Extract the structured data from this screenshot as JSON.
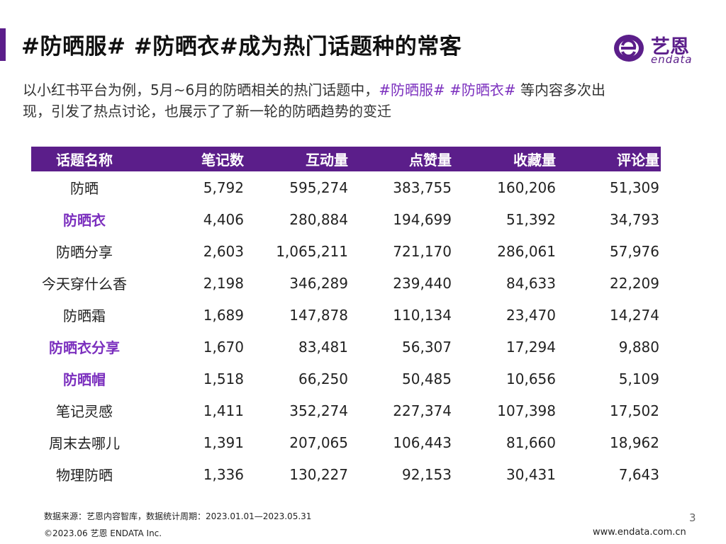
{
  "slide": {
    "title": "#防晒服# #防晒衣#成为热门话题种的常客",
    "intro_part1": "以小红书平台为例，5月~6月的防晒相关的热门话题中，",
    "intro_highlight": "#防晒服# #防晒衣#",
    "intro_part2": " 等内容多次出现，引发了热点讨论，也展示了了新一轮的防晒趋势的变迁",
    "page_number": "3"
  },
  "logo": {
    "cn_text": "艺恩",
    "en_text": "endata",
    "icon": "endata-logo-icon",
    "color": "#5b1e8a"
  },
  "table": {
    "headers": [
      "话题名称",
      "笔记数",
      "互动量",
      "点赞量",
      "收藏量",
      "评论量"
    ],
    "rows": [
      {
        "name": "防晒",
        "notes": "5,792",
        "interactions": "595,274",
        "likes": "383,755",
        "collects": "160,206",
        "comments": "51,309",
        "highlight": false
      },
      {
        "name": "防晒衣",
        "notes": "4,406",
        "interactions": "280,884",
        "likes": "194,699",
        "collects": "51,392",
        "comments": "34,793",
        "highlight": true
      },
      {
        "name": "防晒分享",
        "notes": "2,603",
        "interactions": "1,065,211",
        "likes": "721,170",
        "collects": "286,061",
        "comments": "57,976",
        "highlight": false
      },
      {
        "name": "今天穿什么香",
        "notes": "2,198",
        "interactions": "346,289",
        "likes": "239,440",
        "collects": "84,633",
        "comments": "22,209",
        "highlight": false
      },
      {
        "name": "防晒霜",
        "notes": "1,689",
        "interactions": "147,878",
        "likes": "110,134",
        "collects": "23,470",
        "comments": "14,274",
        "highlight": false
      },
      {
        "name": "防晒衣分享",
        "notes": "1,670",
        "interactions": "83,481",
        "likes": "56,307",
        "collects": "17,294",
        "comments": "9,880",
        "highlight": true
      },
      {
        "name": "防晒帽",
        "notes": "1,518",
        "interactions": "66,250",
        "likes": "50,485",
        "collects": "10,656",
        "comments": "5,109",
        "highlight": true
      },
      {
        "name": "笔记灵感",
        "notes": "1,411",
        "interactions": "352,274",
        "likes": "227,374",
        "collects": "107,398",
        "comments": "17,502",
        "highlight": false
      },
      {
        "name": "周末去哪儿",
        "notes": "1,391",
        "interactions": "207,065",
        "likes": "106,443",
        "collects": "81,660",
        "comments": "18,962",
        "highlight": false
      },
      {
        "name": "物理防晒",
        "notes": "1,336",
        "interactions": "130,227",
        "likes": "92,153",
        "collects": "30,431",
        "comments": "7,643",
        "highlight": false
      }
    ]
  },
  "footer": {
    "source": "数据来源：艺恩内容智库，数据统计周期：2023.01.01—2023.05.31",
    "copyright": "©2023.06 艺恩 ENDATA Inc.",
    "website": "www.endata.com.cn"
  },
  "colors": {
    "accent": "#5b1e8a",
    "highlight_text": "#7b2fbe"
  }
}
